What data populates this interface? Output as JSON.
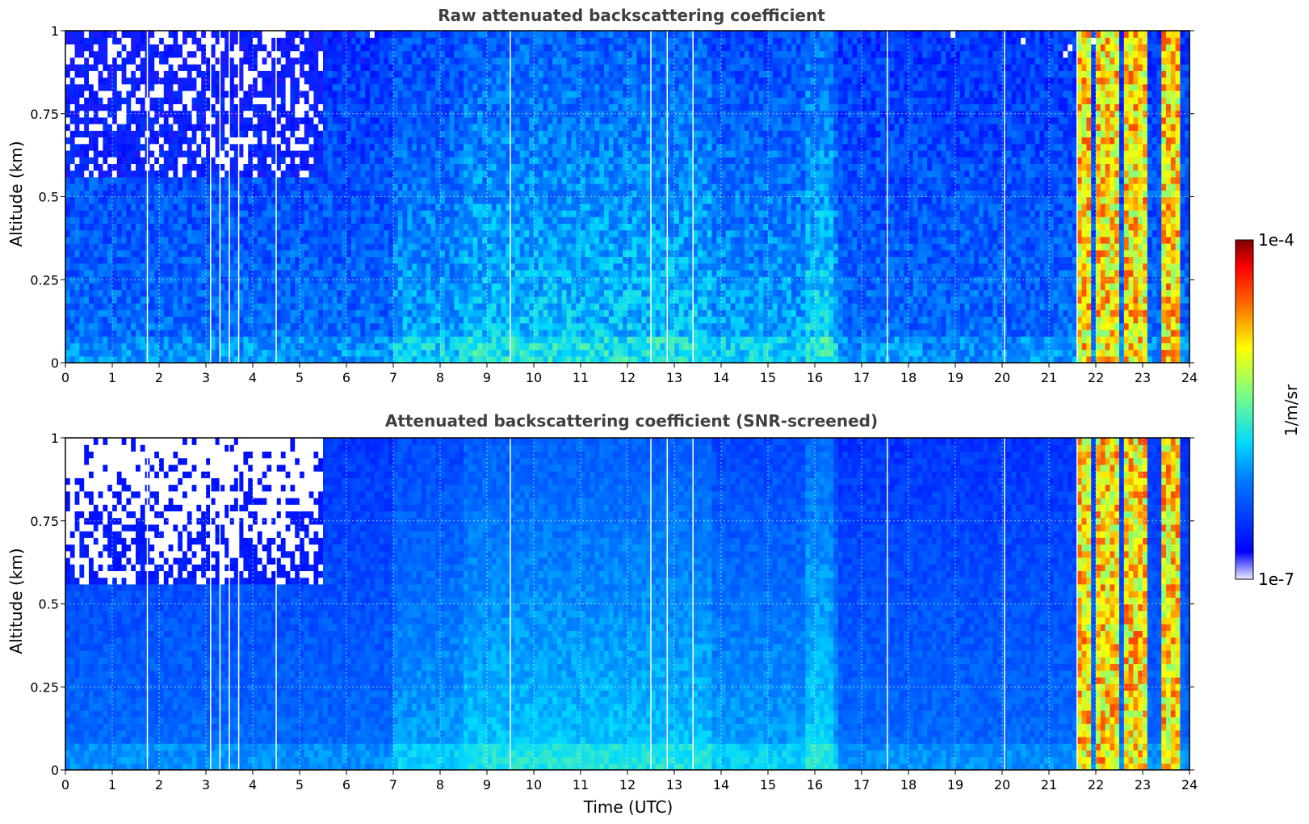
{
  "figure": {
    "xlabel": "Time (UTC)",
    "colorbar": {
      "label": "1/m/sr",
      "min_label": "1e-7",
      "max_label": "1e-4",
      "scale": "log",
      "range": [
        1e-07,
        0.0001
      ],
      "colormap": "jet"
    }
  },
  "chart_data": [
    {
      "type": "heatmap",
      "title": "Raw attenuated backscattering coefficient",
      "xlabel": "",
      "ylabel": "Altitude (km)",
      "xlim": [
        0,
        24
      ],
      "ylim": [
        0,
        1
      ],
      "xticks": [
        "0",
        "1",
        "2",
        "3",
        "4",
        "5",
        "6",
        "7",
        "8",
        "9",
        "10",
        "11",
        "12",
        "13",
        "14",
        "15",
        "16",
        "17",
        "18",
        "19",
        "20",
        "21",
        "22",
        "23",
        "24"
      ],
      "yticks": [
        "0",
        "0.25",
        "0.5",
        "0.75",
        "1"
      ],
      "grid": true,
      "screened": false
    },
    {
      "type": "heatmap",
      "title": "Attenuated backscattering coefficient (SNR-screened)",
      "xlabel": "Time (UTC)",
      "ylabel": "Altitude (km)",
      "xlim": [
        0,
        24
      ],
      "ylim": [
        0,
        1
      ],
      "xticks": [
        "0",
        "1",
        "2",
        "3",
        "4",
        "5",
        "6",
        "7",
        "8",
        "9",
        "10",
        "11",
        "12",
        "13",
        "14",
        "15",
        "16",
        "17",
        "18",
        "19",
        "20",
        "21",
        "22",
        "23",
        "24"
      ],
      "yticks": [
        "0",
        "0.25",
        "0.5",
        "0.75",
        "1"
      ],
      "grid": true,
      "screened": true
    }
  ]
}
